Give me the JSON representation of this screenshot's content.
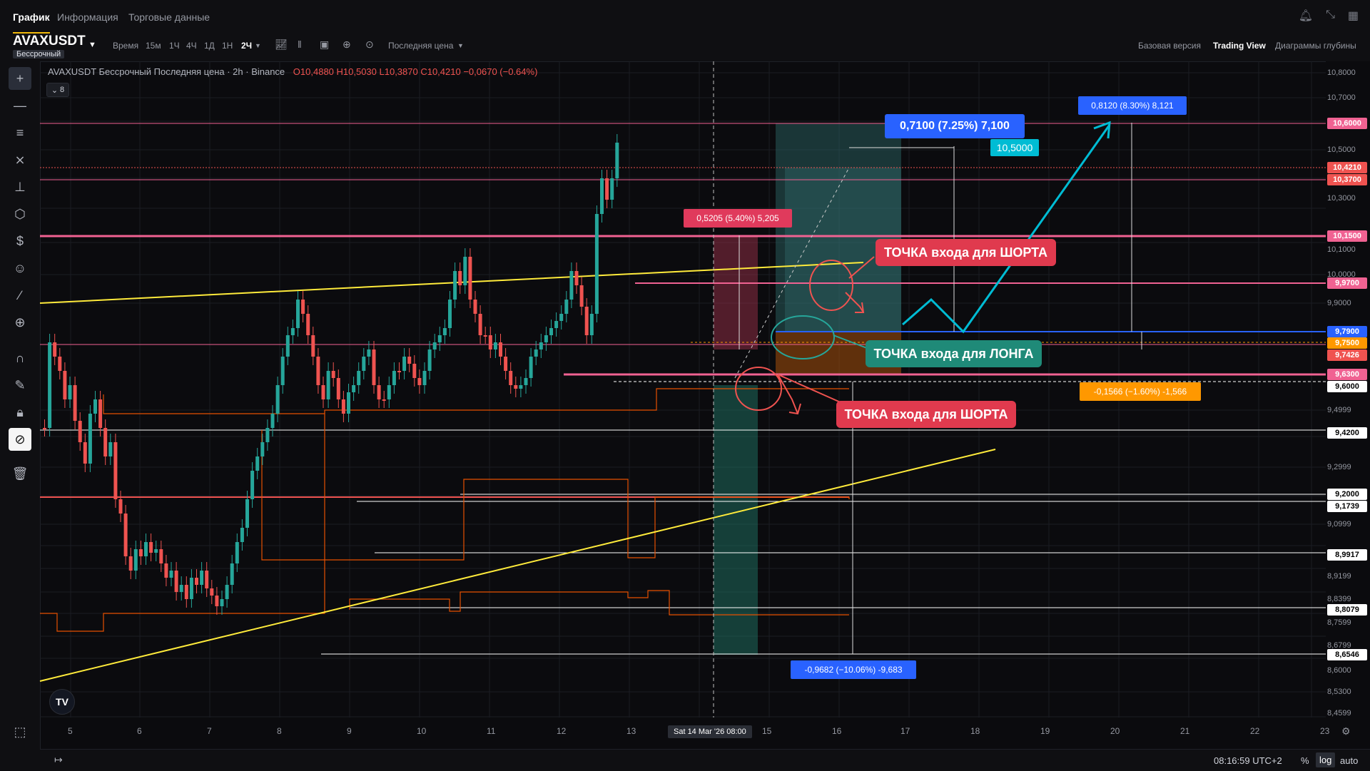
{
  "top_tabs": {
    "chart": "График",
    "info": "Информация",
    "trading_data": "Торговые данные"
  },
  "symbol": {
    "name": "AVAXUSDT",
    "type": "Бессрочный"
  },
  "toolbar": {
    "time_label": "Время",
    "intervals": [
      "15м",
      "1Ч",
      "4Ч",
      "1Д",
      "1Н",
      "2Ч"
    ],
    "active_interval": "2Ч",
    "price_type": "Последняя цена",
    "views": [
      "Базовая версия",
      "Trading View",
      "Диаграммы глубины"
    ],
    "active_view": "Trading View"
  },
  "legend": {
    "text": "AVAXUSDT Бессрочный Последняя цена · 2h · Binance",
    "ohlc": "O10,4880  H10,5030  L10,3870  C10,4210  −0,0670 (−0.64%)",
    "collapse": "8"
  },
  "price_scale": {
    "labels": [
      "10,8000",
      "10,7000",
      "10,5000",
      "10,3000",
      "10,1000",
      "10,0000",
      "9,9000",
      "9,4999",
      "9,2999",
      "9,0999",
      "8,9199",
      "8,8399",
      "8,7599",
      "8,6799",
      "8,6000",
      "8,5300",
      "8,4599"
    ],
    "badges": [
      {
        "value": "10,6000",
        "color": "#f06292"
      },
      {
        "value": "10,4210",
        "color": "#ef5350"
      },
      {
        "value": "10,3700",
        "color": "#ef5350"
      },
      {
        "value": "10,1500",
        "color": "#f06292"
      },
      {
        "value": "9,9700",
        "color": "#f06292"
      },
      {
        "value": "9,7900",
        "color": "#2962ff"
      },
      {
        "value": "9,7500",
        "color": "#ff9800"
      },
      {
        "value": "9,7426",
        "color": "#ef5350"
      },
      {
        "value": "9,6300",
        "color": "#f06292"
      },
      {
        "value": "9,6000",
        "color": "#ffffff"
      },
      {
        "value": "9,4200",
        "color": "#ffffff"
      },
      {
        "value": "9,2000",
        "color": "#ffffff"
      },
      {
        "value": "9,1739",
        "color": "#ffffff"
      },
      {
        "value": "8,9917",
        "color": "#ffffff"
      },
      {
        "value": "8,8079",
        "color": "#ffffff"
      },
      {
        "value": "8,6546",
        "color": "#ffffff"
      }
    ]
  },
  "time_scale": {
    "labels": [
      "5",
      "6",
      "7",
      "8",
      "9",
      "10",
      "11",
      "12",
      "13",
      "15",
      "16",
      "17",
      "18",
      "19",
      "20",
      "21",
      "22",
      "23"
    ],
    "crosshair": "Sat 14 Mar '26   08:00"
  },
  "annotations": {
    "long_entry": "ТОЧКА входа для ЛОНГА",
    "short_entry_1": "ТОЧКА входа для ШОРТА",
    "short_entry_2": "ТОЧКА входа для ШОРТА",
    "measure_1": "0,7100 (7.25%) 7,100",
    "measure_1_price": "10,5000",
    "measure_2": "0,8120 (8.30%) 8,121",
    "measure_3": "0,5205 (5.40%) 5,205",
    "measure_4": "-0,1566 (−1.60%) -1,566",
    "measure_5": "-0,9682 (−10.06%) -9,683"
  },
  "bottom": {
    "clock": "08:16:59 UTC+2",
    "percent": "%",
    "log": "log",
    "auto": "auto"
  },
  "colors": {
    "up": "#26a69a",
    "down": "#ef5350",
    "pink": "#f06292",
    "yellow": "#ffeb3b",
    "orange": "#ff6d00",
    "blue": "#2962ff",
    "cyan": "#00bcd4"
  }
}
